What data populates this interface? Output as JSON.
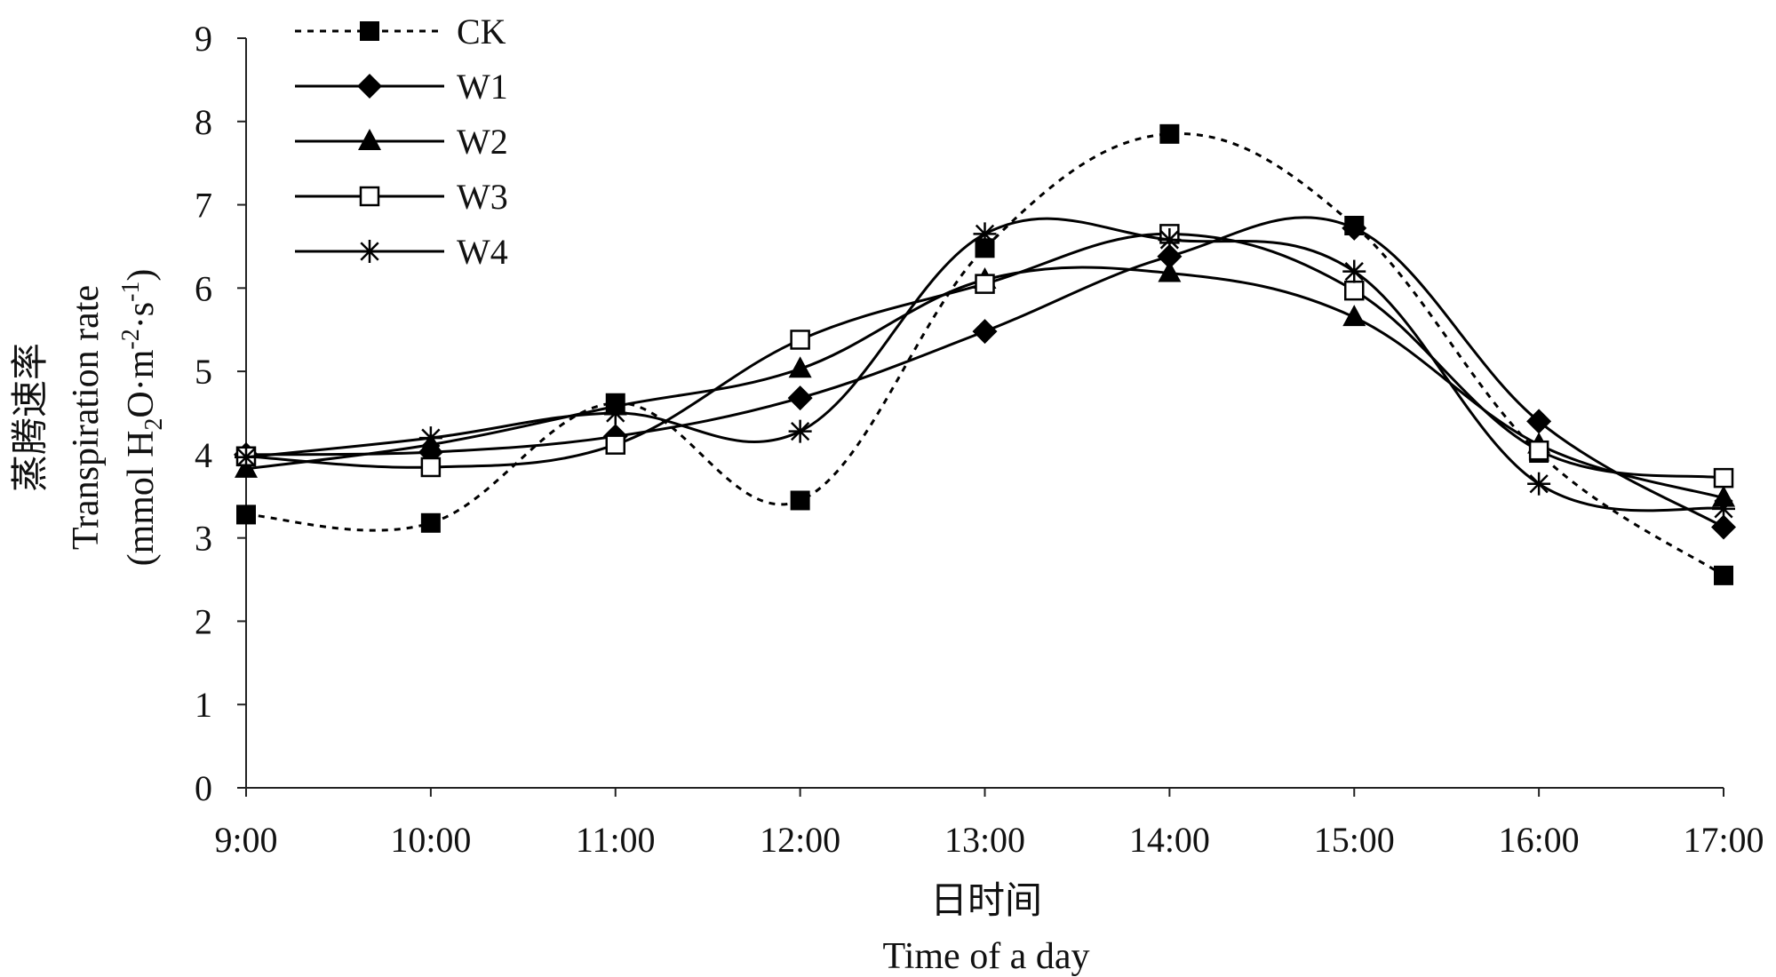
{
  "chart_data": {
    "type": "line",
    "title": "",
    "categories": [
      "9:00",
      "10:00",
      "11:00",
      "12:00",
      "13:00",
      "14:00",
      "15:00",
      "16:00",
      "17:00"
    ],
    "xlabel_cn": "日时间",
    "xlabel_en": "Time of a day",
    "ylabel_cn": "蒸腾速率",
    "ylabel_en": "Transpiration rate",
    "ylabel_unit": {
      "open": "(mmol H",
      "sub2": "2",
      "mid": "O·m",
      "sup1": "-2",
      "mid2": "·s",
      "sup2": "-1",
      "close": ")"
    },
    "ylim": [
      0,
      9
    ],
    "yticks": [
      "0",
      "1",
      "2",
      "3",
      "4",
      "5",
      "6",
      "7",
      "8",
      "9"
    ],
    "grid": false,
    "legend_position": "top-left",
    "series": [
      {
        "name": "CK",
        "marker": "filled-square",
        "dashed": true,
        "values": [
          3.28,
          3.18,
          4.62,
          3.45,
          6.48,
          7.85,
          6.75,
          4.02,
          2.55
        ]
      },
      {
        "name": "W1",
        "marker": "filled-diamond",
        "dashed": false,
        "values": [
          4.0,
          4.03,
          4.22,
          4.68,
          5.48,
          6.38,
          6.72,
          4.4,
          3.13
        ]
      },
      {
        "name": "W2",
        "marker": "filled-triangle",
        "dashed": false,
        "values": [
          3.83,
          4.12,
          4.58,
          5.03,
          6.1,
          6.18,
          5.65,
          4.12,
          3.48
        ]
      },
      {
        "name": "W3",
        "marker": "open-square",
        "dashed": false,
        "values": [
          3.98,
          3.85,
          4.12,
          5.38,
          6.05,
          6.65,
          5.97,
          4.05,
          3.72
        ]
      },
      {
        "name": "W4",
        "marker": "asterisk",
        "dashed": false,
        "values": [
          3.97,
          4.2,
          4.5,
          4.28,
          6.65,
          6.58,
          6.2,
          3.65,
          3.35
        ]
      }
    ]
  }
}
